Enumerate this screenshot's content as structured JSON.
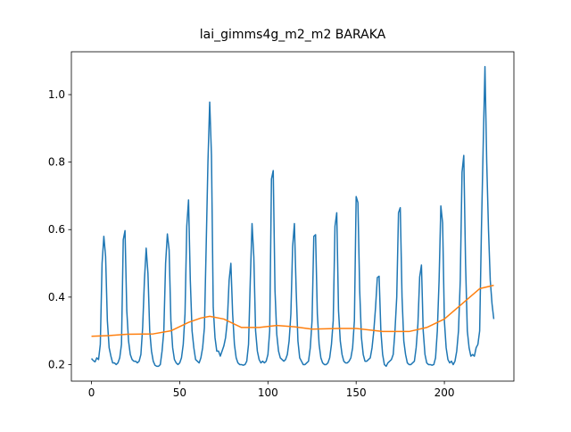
{
  "chart_data": {
    "type": "line",
    "title": "lai_gimms4g_m2_m2 BARAKA",
    "xlim": [
      -11.4,
      239.4
    ],
    "ylim": [
      0.151,
      1.127
    ],
    "xticks": [
      0,
      50,
      100,
      150,
      200
    ],
    "yticks": [
      0.2,
      0.4,
      0.6,
      0.8,
      {
        "value": 1,
        "label": "1.0"
      }
    ],
    "grid": false,
    "series": [
      {
        "color": "#1f77b4",
        "x": [
          0,
          1,
          2,
          3,
          4,
          5,
          6,
          7,
          8,
          9,
          10,
          11,
          12,
          13,
          14,
          15,
          16,
          17,
          18,
          19,
          20,
          21,
          22,
          23,
          24,
          25,
          26,
          27,
          28,
          29,
          30,
          31,
          32,
          33,
          34,
          35,
          36,
          37,
          38,
          39,
          40,
          41,
          42,
          43,
          44,
          45,
          46,
          47,
          48,
          49,
          50,
          51,
          52,
          53,
          54,
          55,
          56,
          57,
          58,
          59,
          60,
          61,
          62,
          63,
          64,
          65,
          66,
          67,
          68,
          69,
          70,
          71,
          72,
          73,
          74,
          75,
          76,
          77,
          78,
          79,
          80,
          81,
          82,
          83,
          84,
          85,
          86,
          87,
          88,
          89,
          90,
          91,
          92,
          93,
          94,
          95,
          96,
          97,
          98,
          99,
          100,
          101,
          102,
          103,
          104,
          105,
          106,
          107,
          108,
          109,
          110,
          111,
          112,
          113,
          114,
          115,
          116,
          117,
          118,
          119,
          120,
          121,
          122,
          123,
          124,
          125,
          126,
          127,
          128,
          129,
          130,
          131,
          132,
          133,
          134,
          135,
          136,
          137,
          138,
          139,
          140,
          141,
          142,
          143,
          144,
          145,
          146,
          147,
          148,
          149,
          150,
          151,
          152,
          153,
          154,
          155,
          156,
          157,
          158,
          159,
          160,
          161,
          162,
          163,
          164,
          165,
          166,
          167,
          168,
          169,
          170,
          171,
          172,
          173,
          174,
          175,
          176,
          177,
          178,
          179,
          180,
          181,
          182,
          183,
          184,
          185,
          186,
          187,
          188,
          189,
          190,
          191,
          192,
          193,
          194,
          195,
          196,
          197,
          198,
          199,
          200,
          201,
          202,
          203,
          204,
          205,
          206,
          207,
          208,
          209,
          210,
          211,
          212,
          213,
          214,
          215,
          216,
          217,
          218,
          219,
          220,
          221,
          222,
          223,
          224,
          225,
          226,
          227,
          228
        ],
        "values": [
          0.218,
          0.212,
          0.208,
          0.22,
          0.215,
          0.26,
          0.5,
          0.58,
          0.52,
          0.33,
          0.25,
          0.225,
          0.205,
          0.205,
          0.2,
          0.205,
          0.22,
          0.26,
          0.57,
          0.597,
          0.36,
          0.27,
          0.23,
          0.215,
          0.21,
          0.21,
          0.205,
          0.21,
          0.23,
          0.31,
          0.45,
          0.545,
          0.47,
          0.3,
          0.24,
          0.21,
          0.198,
          0.195,
          0.195,
          0.2,
          0.24,
          0.3,
          0.5,
          0.587,
          0.54,
          0.33,
          0.25,
          0.215,
          0.205,
          0.2,
          0.205,
          0.22,
          0.26,
          0.35,
          0.61,
          0.688,
          0.45,
          0.3,
          0.25,
          0.215,
          0.21,
          0.205,
          0.22,
          0.25,
          0.31,
          0.55,
          0.8,
          0.978,
          0.82,
          0.37,
          0.28,
          0.24,
          0.24,
          0.225,
          0.24,
          0.255,
          0.28,
          0.33,
          0.45,
          0.5,
          0.35,
          0.26,
          0.22,
          0.205,
          0.2,
          0.2,
          0.198,
          0.2,
          0.21,
          0.26,
          0.45,
          0.618,
          0.52,
          0.3,
          0.24,
          0.215,
          0.205,
          0.21,
          0.205,
          0.21,
          0.23,
          0.3,
          0.75,
          0.775,
          0.42,
          0.29,
          0.24,
          0.22,
          0.215,
          0.21,
          0.215,
          0.23,
          0.27,
          0.35,
          0.55,
          0.618,
          0.42,
          0.27,
          0.22,
          0.21,
          0.2,
          0.2,
          0.205,
          0.21,
          0.25,
          0.33,
          0.58,
          0.585,
          0.35,
          0.26,
          0.22,
          0.205,
          0.2,
          0.2,
          0.205,
          0.22,
          0.26,
          0.33,
          0.61,
          0.65,
          0.36,
          0.27,
          0.23,
          0.21,
          0.205,
          0.205,
          0.21,
          0.22,
          0.25,
          0.33,
          0.698,
          0.68,
          0.42,
          0.28,
          0.23,
          0.21,
          0.21,
          0.215,
          0.22,
          0.25,
          0.3,
          0.37,
          0.458,
          0.462,
          0.3,
          0.23,
          0.2,
          0.195,
          0.205,
          0.21,
          0.215,
          0.23,
          0.3,
          0.4,
          0.65,
          0.665,
          0.4,
          0.27,
          0.23,
          0.205,
          0.2,
          0.2,
          0.205,
          0.21,
          0.25,
          0.32,
          0.46,
          0.495,
          0.3,
          0.23,
          0.205,
          0.2,
          0.2,
          0.198,
          0.2,
          0.22,
          0.3,
          0.45,
          0.67,
          0.62,
          0.33,
          0.25,
          0.215,
          0.205,
          0.21,
          0.2,
          0.21,
          0.24,
          0.3,
          0.45,
          0.77,
          0.82,
          0.5,
          0.3,
          0.25,
          0.225,
          0.23,
          0.225,
          0.25,
          0.26,
          0.3,
          0.6,
          0.85,
          1.083,
          0.8,
          0.6,
          0.45,
          0.38,
          0.335
        ]
      },
      {
        "color": "#ff7f0e",
        "x": [
          0,
          10,
          20,
          35,
          45,
          55,
          62,
          67,
          75,
          85,
          95,
          105,
          115,
          125,
          140,
          150,
          165,
          180,
          190,
          200,
          210,
          220,
          228
        ],
        "values": [
          0.284,
          0.286,
          0.29,
          0.291,
          0.3,
          0.325,
          0.338,
          0.343,
          0.335,
          0.31,
          0.31,
          0.316,
          0.312,
          0.305,
          0.307,
          0.307,
          0.298,
          0.298,
          0.31,
          0.335,
          0.38,
          0.425,
          0.435
        ]
      }
    ]
  }
}
